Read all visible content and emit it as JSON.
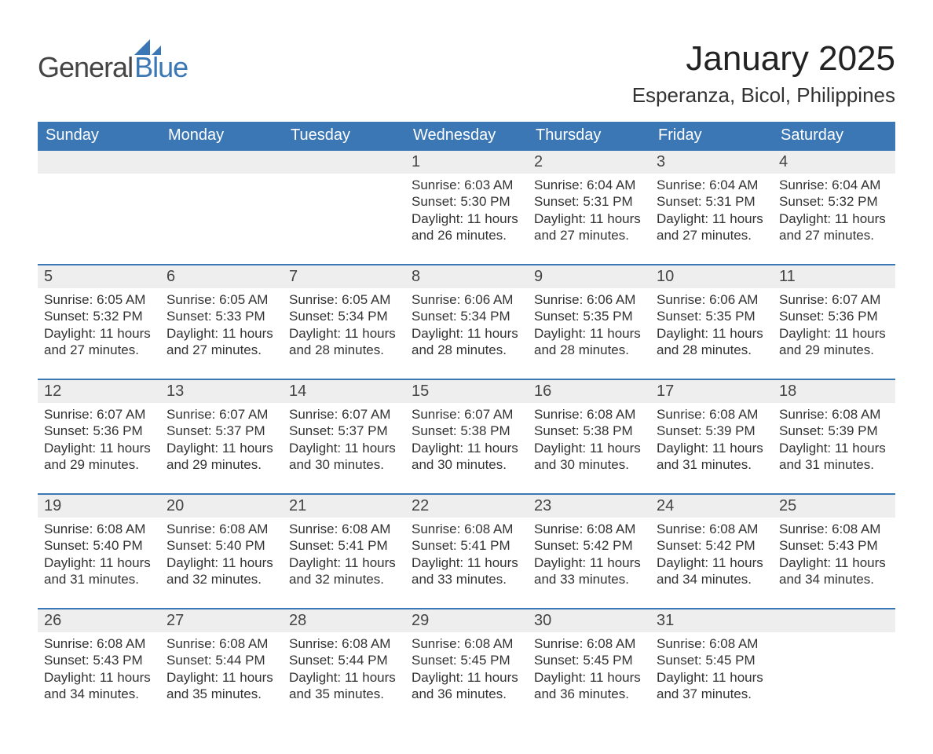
{
  "brand": {
    "general": "General",
    "blue": "Blue",
    "accent_color": "#3b76b5",
    "text_color": "#444444"
  },
  "header": {
    "month_title": "January 2025",
    "location": "Esperanza, Bicol, Philippines"
  },
  "calendar": {
    "days_of_week": [
      "Sunday",
      "Monday",
      "Tuesday",
      "Wednesday",
      "Thursday",
      "Friday",
      "Saturday"
    ],
    "labels": {
      "sunrise": "Sunrise",
      "sunset": "Sunset",
      "daylight": "Daylight"
    },
    "weeks": [
      {
        "cells": [
          {
            "day": "",
            "sunrise": "",
            "sunset": "",
            "daylight_line1": "",
            "daylight_line2": ""
          },
          {
            "day": "",
            "sunrise": "",
            "sunset": "",
            "daylight_line1": "",
            "daylight_line2": ""
          },
          {
            "day": "",
            "sunrise": "",
            "sunset": "",
            "daylight_line1": "",
            "daylight_line2": ""
          },
          {
            "day": "1",
            "sunrise": "6:03 AM",
            "sunset": "5:30 PM",
            "daylight_line1": "Daylight: 11 hours",
            "daylight_line2": "and 26 minutes."
          },
          {
            "day": "2",
            "sunrise": "6:04 AM",
            "sunset": "5:31 PM",
            "daylight_line1": "Daylight: 11 hours",
            "daylight_line2": "and 27 minutes."
          },
          {
            "day": "3",
            "sunrise": "6:04 AM",
            "sunset": "5:31 PM",
            "daylight_line1": "Daylight: 11 hours",
            "daylight_line2": "and 27 minutes."
          },
          {
            "day": "4",
            "sunrise": "6:04 AM",
            "sunset": "5:32 PM",
            "daylight_line1": "Daylight: 11 hours",
            "daylight_line2": "and 27 minutes."
          }
        ]
      },
      {
        "cells": [
          {
            "day": "5",
            "sunrise": "6:05 AM",
            "sunset": "5:32 PM",
            "daylight_line1": "Daylight: 11 hours",
            "daylight_line2": "and 27 minutes."
          },
          {
            "day": "6",
            "sunrise": "6:05 AM",
            "sunset": "5:33 PM",
            "daylight_line1": "Daylight: 11 hours",
            "daylight_line2": "and 27 minutes."
          },
          {
            "day": "7",
            "sunrise": "6:05 AM",
            "sunset": "5:34 PM",
            "daylight_line1": "Daylight: 11 hours",
            "daylight_line2": "and 28 minutes."
          },
          {
            "day": "8",
            "sunrise": "6:06 AM",
            "sunset": "5:34 PM",
            "daylight_line1": "Daylight: 11 hours",
            "daylight_line2": "and 28 minutes."
          },
          {
            "day": "9",
            "sunrise": "6:06 AM",
            "sunset": "5:35 PM",
            "daylight_line1": "Daylight: 11 hours",
            "daylight_line2": "and 28 minutes."
          },
          {
            "day": "10",
            "sunrise": "6:06 AM",
            "sunset": "5:35 PM",
            "daylight_line1": "Daylight: 11 hours",
            "daylight_line2": "and 28 minutes."
          },
          {
            "day": "11",
            "sunrise": "6:07 AM",
            "sunset": "5:36 PM",
            "daylight_line1": "Daylight: 11 hours",
            "daylight_line2": "and 29 minutes."
          }
        ]
      },
      {
        "cells": [
          {
            "day": "12",
            "sunrise": "6:07 AM",
            "sunset": "5:36 PM",
            "daylight_line1": "Daylight: 11 hours",
            "daylight_line2": "and 29 minutes."
          },
          {
            "day": "13",
            "sunrise": "6:07 AM",
            "sunset": "5:37 PM",
            "daylight_line1": "Daylight: 11 hours",
            "daylight_line2": "and 29 minutes."
          },
          {
            "day": "14",
            "sunrise": "6:07 AM",
            "sunset": "5:37 PM",
            "daylight_line1": "Daylight: 11 hours",
            "daylight_line2": "and 30 minutes."
          },
          {
            "day": "15",
            "sunrise": "6:07 AM",
            "sunset": "5:38 PM",
            "daylight_line1": "Daylight: 11 hours",
            "daylight_line2": "and 30 minutes."
          },
          {
            "day": "16",
            "sunrise": "6:08 AM",
            "sunset": "5:38 PM",
            "daylight_line1": "Daylight: 11 hours",
            "daylight_line2": "and 30 minutes."
          },
          {
            "day": "17",
            "sunrise": "6:08 AM",
            "sunset": "5:39 PM",
            "daylight_line1": "Daylight: 11 hours",
            "daylight_line2": "and 31 minutes."
          },
          {
            "day": "18",
            "sunrise": "6:08 AM",
            "sunset": "5:39 PM",
            "daylight_line1": "Daylight: 11 hours",
            "daylight_line2": "and 31 minutes."
          }
        ]
      },
      {
        "cells": [
          {
            "day": "19",
            "sunrise": "6:08 AM",
            "sunset": "5:40 PM",
            "daylight_line1": "Daylight: 11 hours",
            "daylight_line2": "and 31 minutes."
          },
          {
            "day": "20",
            "sunrise": "6:08 AM",
            "sunset": "5:40 PM",
            "daylight_line1": "Daylight: 11 hours",
            "daylight_line2": "and 32 minutes."
          },
          {
            "day": "21",
            "sunrise": "6:08 AM",
            "sunset": "5:41 PM",
            "daylight_line1": "Daylight: 11 hours",
            "daylight_line2": "and 32 minutes."
          },
          {
            "day": "22",
            "sunrise": "6:08 AM",
            "sunset": "5:41 PM",
            "daylight_line1": "Daylight: 11 hours",
            "daylight_line2": "and 33 minutes."
          },
          {
            "day": "23",
            "sunrise": "6:08 AM",
            "sunset": "5:42 PM",
            "daylight_line1": "Daylight: 11 hours",
            "daylight_line2": "and 33 minutes."
          },
          {
            "day": "24",
            "sunrise": "6:08 AM",
            "sunset": "5:42 PM",
            "daylight_line1": "Daylight: 11 hours",
            "daylight_line2": "and 34 minutes."
          },
          {
            "day": "25",
            "sunrise": "6:08 AM",
            "sunset": "5:43 PM",
            "daylight_line1": "Daylight: 11 hours",
            "daylight_line2": "and 34 minutes."
          }
        ]
      },
      {
        "cells": [
          {
            "day": "26",
            "sunrise": "6:08 AM",
            "sunset": "5:43 PM",
            "daylight_line1": "Daylight: 11 hours",
            "daylight_line2": "and 34 minutes."
          },
          {
            "day": "27",
            "sunrise": "6:08 AM",
            "sunset": "5:44 PM",
            "daylight_line1": "Daylight: 11 hours",
            "daylight_line2": "and 35 minutes."
          },
          {
            "day": "28",
            "sunrise": "6:08 AM",
            "sunset": "5:44 PM",
            "daylight_line1": "Daylight: 11 hours",
            "daylight_line2": "and 35 minutes."
          },
          {
            "day": "29",
            "sunrise": "6:08 AM",
            "sunset": "5:45 PM",
            "daylight_line1": "Daylight: 11 hours",
            "daylight_line2": "and 36 minutes."
          },
          {
            "day": "30",
            "sunrise": "6:08 AM",
            "sunset": "5:45 PM",
            "daylight_line1": "Daylight: 11 hours",
            "daylight_line2": "and 36 minutes."
          },
          {
            "day": "31",
            "sunrise": "6:08 AM",
            "sunset": "5:45 PM",
            "daylight_line1": "Daylight: 11 hours",
            "daylight_line2": "and 37 minutes."
          },
          {
            "day": "",
            "sunrise": "",
            "sunset": "",
            "daylight_line1": "",
            "daylight_line2": ""
          }
        ]
      }
    ]
  },
  "style": {
    "header_bg": "#3b76b5",
    "header_text": "#ffffff",
    "date_row_bg": "#eeeeee",
    "week_border": "#3b76b5",
    "body_text": "#333333",
    "title_fontsize": 44,
    "location_fontsize": 26,
    "dow_fontsize": 20,
    "date_fontsize": 20,
    "cell_fontsize": 17
  }
}
